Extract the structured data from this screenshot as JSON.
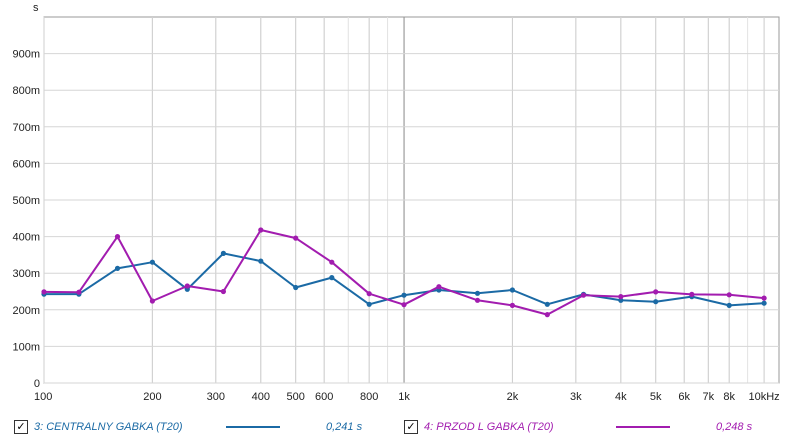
{
  "chart_data": {
    "type": "line",
    "x_scale": "log",
    "y_unit_label": "s",
    "xlim": [
      100,
      11000
    ],
    "ylim": [
      0,
      1.0
    ],
    "grid": true,
    "x_major_ticks": [
      {
        "v": 100,
        "label": "100"
      },
      {
        "v": 200,
        "label": "200"
      },
      {
        "v": 300,
        "label": "300"
      },
      {
        "v": 400,
        "label": "400"
      },
      {
        "v": 500,
        "label": "500"
      },
      {
        "v": 600,
        "label": "600"
      },
      {
        "v": 800,
        "label": "800"
      },
      {
        "v": 1000,
        "label": "1k"
      },
      {
        "v": 2000,
        "label": "2k"
      },
      {
        "v": 3000,
        "label": "3k"
      },
      {
        "v": 4000,
        "label": "4k"
      },
      {
        "v": 5000,
        "label": "5k"
      },
      {
        "v": 6000,
        "label": "6k"
      },
      {
        "v": 7000,
        "label": "7k"
      },
      {
        "v": 8000,
        "label": "8k"
      },
      {
        "v": 10000,
        "label": "10kHz"
      }
    ],
    "y_ticks": [
      {
        "v": 0,
        "label": "0"
      },
      {
        "v": 0.1,
        "label": "100m"
      },
      {
        "v": 0.2,
        "label": "200m"
      },
      {
        "v": 0.3,
        "label": "300m"
      },
      {
        "v": 0.4,
        "label": "400m"
      },
      {
        "v": 0.5,
        "label": "500m"
      },
      {
        "v": 0.6,
        "label": "600m"
      },
      {
        "v": 0.7,
        "label": "700m"
      },
      {
        "v": 0.8,
        "label": "800m"
      },
      {
        "v": 0.9,
        "label": "900m"
      }
    ],
    "x": [
      100,
      125,
      160,
      200,
      250,
      315,
      400,
      500,
      630,
      800,
      1000,
      1250,
      1600,
      2000,
      2500,
      3150,
      4000,
      5000,
      6300,
      8000,
      10000
    ],
    "series": [
      {
        "name": "3: CENTRALNY GABKA (T20)",
        "color": "#1b6aa5",
        "values": [
          0.243,
          0.243,
          0.313,
          0.33,
          0.256,
          0.354,
          0.333,
          0.261,
          0.288,
          0.215,
          0.24,
          0.254,
          0.245,
          0.254,
          0.215,
          0.242,
          0.226,
          0.222,
          0.236,
          0.212,
          0.218
        ]
      },
      {
        "name": "4: PRZOD L GABKA (T20)",
        "color": "#a21caf",
        "values": [
          0.249,
          0.248,
          0.4,
          0.224,
          0.265,
          0.25,
          0.418,
          0.396,
          0.33,
          0.244,
          0.214,
          0.263,
          0.226,
          0.212,
          0.187,
          0.24,
          0.236,
          0.249,
          0.242,
          0.241,
          0.232
        ]
      }
    ]
  },
  "legend": [
    {
      "checkbox": "✓",
      "label": "3: CENTRALNY GABKA (T20)",
      "value": "0,241 s",
      "color": "#1b6aa5"
    },
    {
      "checkbox": "✓",
      "label": "4: PRZOD L GABKA (T20)",
      "value": "0,248 s",
      "color": "#a21caf"
    }
  ]
}
